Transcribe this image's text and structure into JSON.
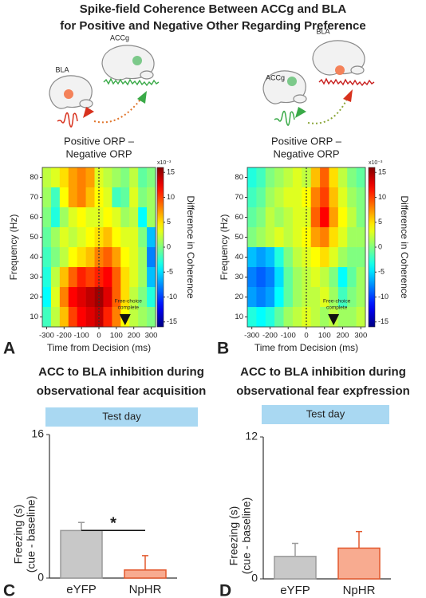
{
  "title": [
    "Spike-field Coherence Between ACCg and BLA",
    "for Positive and Negative Other Regarding Preference"
  ],
  "chart_data": [
    {
      "type": "heatmap",
      "panel": "A",
      "regions": [
        "BLA",
        "ACCg"
      ],
      "title": [
        "Positive ORP –",
        "Negative ORP"
      ],
      "x_label": "Time from Decision (ms)",
      "y_label": "Frequency (Hz)",
      "colorbar_label": "Difference in Coherence",
      "colorbar_scale": "x10⁻³",
      "annotation": [
        "Free-choice",
        "complete"
      ],
      "event_x": 150,
      "decision_x": 0,
      "colormap": "jet",
      "x": [
        -300,
        -250,
        -200,
        -150,
        -100,
        -50,
        0,
        50,
        100,
        150,
        200,
        250,
        300
      ],
      "y": [
        80,
        70,
        60,
        50,
        40,
        30,
        20,
        10
      ],
      "z": [
        [
          2,
          3,
          5,
          7,
          8,
          7,
          3,
          2,
          1,
          0,
          2,
          -1,
          0
        ],
        [
          1,
          -2,
          4,
          7,
          8,
          6,
          4,
          3,
          -2,
          -1,
          3,
          0,
          1
        ],
        [
          0,
          -3,
          1,
          3,
          4,
          3,
          3,
          4,
          3,
          1,
          2,
          -4,
          1
        ],
        [
          -1,
          1,
          3,
          2,
          3,
          4,
          5,
          6,
          4,
          3,
          3,
          0,
          -6
        ],
        [
          -2,
          0,
          2,
          4,
          5,
          6,
          8,
          9,
          7,
          4,
          3,
          1,
          -8
        ],
        [
          -3,
          2,
          6,
          9,
          11,
          10,
          11,
          12,
          9,
          5,
          3,
          1,
          -6
        ],
        [
          -4,
          3,
          8,
          12,
          13,
          14,
          15,
          13,
          9,
          5,
          2,
          0,
          -3
        ],
        [
          -2,
          2,
          6,
          10,
          12,
          13,
          14,
          11,
          8,
          4,
          2,
          1,
          0
        ]
      ],
      "xlim": [
        -325,
        325
      ],
      "ylim": [
        5,
        85
      ],
      "xticks": [
        -300,
        -200,
        -100,
        0,
        100,
        200,
        300
      ],
      "yticks": [
        10,
        20,
        30,
        40,
        50,
        60,
        70,
        80
      ],
      "clim": [
        -16,
        16
      ],
      "cticks": [
        15,
        10,
        5,
        0,
        -5,
        -10,
        -15
      ]
    },
    {
      "type": "heatmap",
      "panel": "B",
      "regions": [
        "ACCg",
        "BLA"
      ],
      "title": [
        "Positive ORP –",
        "Negative ORP"
      ],
      "x_label": "Time from Decision (ms)",
      "y_label": "Frequency (Hz)",
      "colorbar_label": "Difference in Coherence",
      "colorbar_scale": "x10⁻³",
      "annotation": [
        "Free-choice",
        "complete"
      ],
      "event_x": 150,
      "decision_x": 0,
      "colormap": "jet",
      "x": [
        -300,
        -250,
        -200,
        -150,
        -100,
        -50,
        0,
        50,
        100,
        150,
        200,
        250,
        300
      ],
      "y": [
        80,
        70,
        60,
        50,
        40,
        30,
        20,
        10
      ],
      "z": [
        [
          -3,
          -2,
          0,
          1,
          2,
          3,
          2,
          6,
          9,
          5,
          2,
          0,
          -1
        ],
        [
          -2,
          -1,
          1,
          2,
          3,
          3,
          4,
          8,
          10,
          6,
          3,
          1,
          0
        ],
        [
          -1,
          0,
          2,
          1,
          2,
          3,
          3,
          9,
          12,
          7,
          4,
          2,
          0
        ],
        [
          0,
          1,
          2,
          3,
          2,
          3,
          4,
          7,
          8,
          5,
          3,
          1,
          1
        ],
        [
          -6,
          -7,
          -6,
          -3,
          0,
          2,
          3,
          4,
          5,
          3,
          1,
          0,
          0
        ],
        [
          -8,
          -9,
          -8,
          -5,
          -1,
          1,
          2,
          3,
          2,
          0,
          -4,
          -1,
          1
        ],
        [
          -7,
          -8,
          -7,
          -4,
          -1,
          1,
          2,
          2,
          3,
          1,
          -2,
          0,
          1
        ],
        [
          -3,
          -4,
          -3,
          -1,
          1,
          2,
          3,
          2,
          1,
          2,
          1,
          1,
          2
        ]
      ],
      "xlim": [
        -325,
        325
      ],
      "ylim": [
        5,
        85
      ],
      "xticks": [
        -300,
        -200,
        -100,
        0,
        100,
        200,
        300
      ],
      "yticks": [
        10,
        20,
        30,
        40,
        50,
        60,
        70,
        80
      ],
      "clim": [
        -16,
        16
      ],
      "cticks": [
        15,
        10,
        5,
        0,
        -5,
        -10,
        -15
      ]
    },
    {
      "type": "bar",
      "panel": "C",
      "title": [
        "ACC to BLA inhibition during",
        "observational fear acquisition"
      ],
      "banner": "Test day",
      "y_label": [
        "Freezing (s)",
        "(cue - baseline)"
      ],
      "categories": [
        "eYFP",
        "NpHR"
      ],
      "values": [
        5.3,
        0.9
      ],
      "errors": [
        0.9,
        1.6
      ],
      "colors": [
        "#c8c8c8",
        "#f8ab90"
      ],
      "edge_colors": [
        "#9a9a9a",
        "#e2582c"
      ],
      "label_colors": [
        "#8c8c8c",
        "#e2582c"
      ],
      "significance_label": "*",
      "ylim": [
        0,
        16
      ],
      "yticks": [
        0,
        16
      ]
    },
    {
      "type": "bar",
      "panel": "D",
      "title": [
        "ACC to BLA inhibition during",
        "observational fear expfression"
      ],
      "banner": "Test day",
      "y_label": [
        "Freezing (s)",
        "(cue - baseline)"
      ],
      "categories": [
        "eYFP",
        "NpHR"
      ],
      "values": [
        1.9,
        2.6
      ],
      "errors": [
        1.1,
        1.4
      ],
      "colors": [
        "#c8c8c8",
        "#f8ab90"
      ],
      "edge_colors": [
        "#9a9a9a",
        "#e2582c"
      ],
      "label_colors": [
        "#8c8c8c",
        "#e2582c"
      ],
      "ylim": [
        0,
        12
      ],
      "yticks": [
        0,
        12
      ]
    }
  ]
}
